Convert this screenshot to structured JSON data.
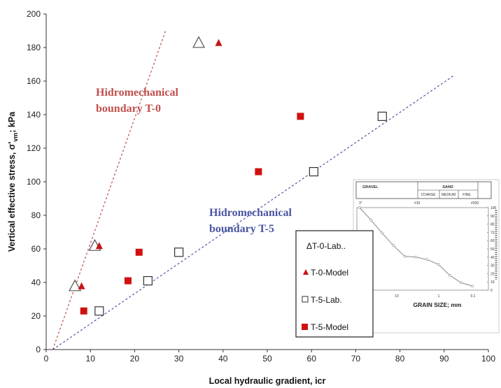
{
  "chart_data": {
    "type": "scatter",
    "xlabel": "Local hydraulic gradient, icr",
    "ylabel_parts": [
      "Vertical effective stress, σ'",
      "vm",
      "; kPa"
    ],
    "xlim": [
      0,
      100
    ],
    "ylim": [
      0,
      200
    ],
    "x_ticks": [
      0,
      10,
      20,
      30,
      40,
      50,
      60,
      70,
      80,
      90,
      100
    ],
    "y_ticks": [
      0,
      20,
      40,
      60,
      80,
      100,
      120,
      140,
      160,
      180,
      200
    ],
    "grid": false,
    "series": [
      {
        "name": "T-0-Lab..",
        "legend_glyph": "Δ",
        "marker": "open-triangle",
        "color": "#555555",
        "points": [
          [
            6.5,
            38
          ],
          [
            11,
            62
          ],
          [
            34.5,
            183
          ]
        ]
      },
      {
        "name": "T-0-Model",
        "marker": "filled-triangle",
        "color": "#c81414",
        "points": [
          [
            8,
            38
          ],
          [
            12,
            62
          ],
          [
            39,
            183
          ]
        ]
      },
      {
        "name": "T-5-Lab.",
        "marker": "open-square",
        "color": "#333333",
        "points": [
          [
            12,
            23
          ],
          [
            23,
            41
          ],
          [
            30,
            58
          ],
          [
            60.5,
            106
          ],
          [
            76,
            139
          ]
        ]
      },
      {
        "name": "T-5-Model",
        "marker": "filled-square",
        "color": "#d01010",
        "points": [
          [
            8.5,
            23
          ],
          [
            18.5,
            41
          ],
          [
            21,
            58
          ],
          [
            48,
            106
          ],
          [
            57.5,
            139
          ]
        ]
      }
    ],
    "boundaries": [
      {
        "label_lines": [
          "Hidromechanical",
          "boundary T-0"
        ],
        "color": "#c0504d",
        "from": [
          1.5,
          0
        ],
        "to": [
          27,
          190
        ]
      },
      {
        "label_lines": [
          "Hidromechanical",
          "boundary T-5"
        ],
        "color": "#4a55a2",
        "from": [
          1.5,
          0
        ],
        "to": [
          92,
          163
        ]
      }
    ],
    "legend_position": "lower-right",
    "inset": {
      "xlabel": "GRAIN SIZE; mm",
      "x_ticks": [
        "10",
        "1",
        "0.1"
      ],
      "y_ticks": [
        "0",
        "10",
        "20",
        "30",
        "40",
        "50",
        "60",
        "70",
        "80",
        "90",
        "100"
      ],
      "header": {
        "gravel": "GRAVEL",
        "sand": "SAND",
        "coarse": "COARSE",
        "medium": "MEDIUM",
        "fine": "FINE"
      },
      "sieves": [
        "3\"",
        "#10",
        "#200"
      ],
      "curve_percent_passing": [
        100,
        85,
        69,
        54,
        41,
        40,
        37,
        31,
        18,
        9,
        5
      ]
    }
  }
}
